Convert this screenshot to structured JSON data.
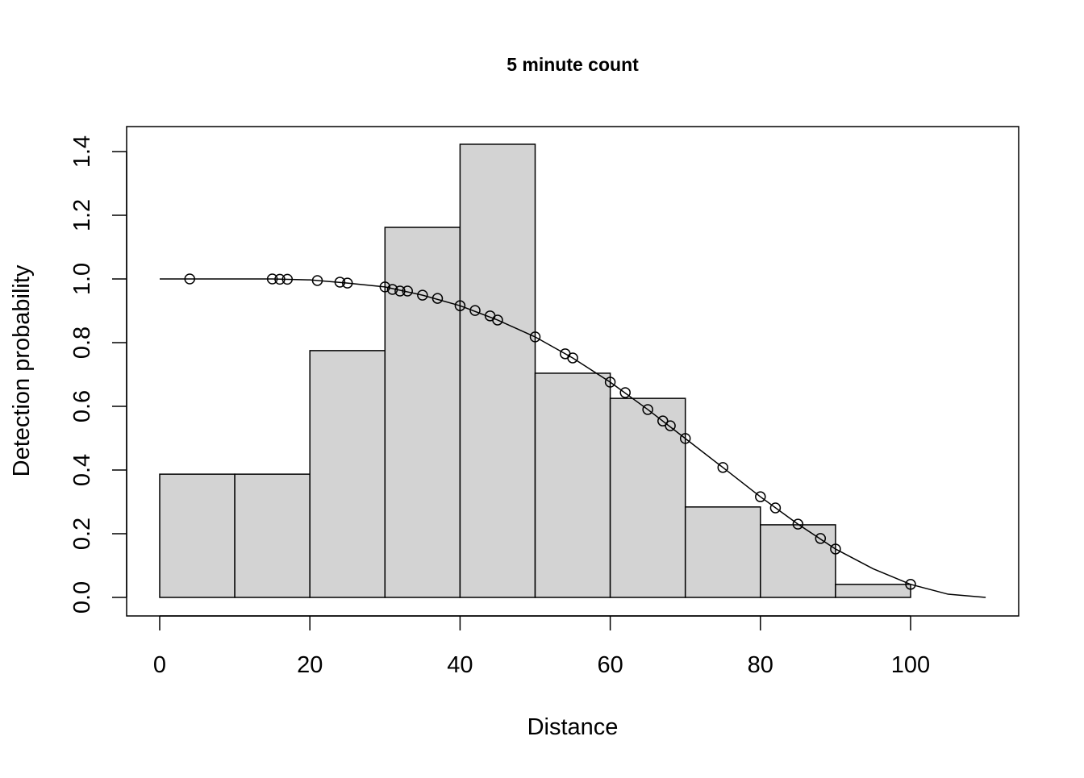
{
  "chart_data": {
    "type": "bar",
    "title": "5 minute count",
    "xlabel": "Distance",
    "ylabel": "Detection probability",
    "xlim": [
      0,
      110
    ],
    "ylim": [
      0,
      1.4
    ],
    "xticks": [
      "0",
      "20",
      "40",
      "60",
      "80",
      "100"
    ],
    "xtick_values": [
      0,
      20,
      40,
      60,
      80,
      100
    ],
    "yticks": [
      "0.0",
      "0.2",
      "0.4",
      "0.6",
      "0.8",
      "1.0",
      "1.2",
      "1.4"
    ],
    "ytick_values": [
      0,
      0.2,
      0.4,
      0.6,
      0.8,
      1.0,
      1.2,
      1.4
    ],
    "grid": false,
    "bar_color": "#d3d3d3",
    "histogram": {
      "bin_edges": [
        0,
        10,
        20,
        30,
        40,
        50,
        60,
        70,
        80,
        90,
        100
      ],
      "values": [
        0.387,
        0.387,
        0.775,
        1.162,
        1.423,
        0.704,
        0.625,
        0.284,
        0.228,
        0.041
      ]
    },
    "fitted_curve": {
      "x": [
        0,
        4,
        10,
        15,
        20,
        25,
        30,
        35,
        40,
        45,
        50,
        55,
        60,
        65,
        70,
        75,
        80,
        85,
        90,
        95,
        100,
        105,
        110
      ],
      "y": [
        1.0,
        1.0,
        1.0,
        1.0,
        0.997,
        0.987,
        0.975,
        0.949,
        0.916,
        0.871,
        0.818,
        0.752,
        0.676,
        0.59,
        0.499,
        0.408,
        0.316,
        0.23,
        0.152,
        0.09,
        0.041,
        0.01,
        0.0
      ]
    },
    "points": {
      "x": [
        4,
        15,
        16,
        17,
        21,
        24,
        25,
        30,
        31,
        32,
        33,
        35,
        37,
        40,
        42,
        44,
        45,
        50,
        54,
        55,
        60,
        62,
        65,
        67,
        68,
        70,
        75,
        80,
        82,
        85,
        88,
        90,
        100
      ],
      "y": [
        1.0,
        1.0,
        0.999,
        0.999,
        0.995,
        0.99,
        0.987,
        0.975,
        0.967,
        0.962,
        0.962,
        0.949,
        0.939,
        0.916,
        0.901,
        0.884,
        0.871,
        0.818,
        0.765,
        0.752,
        0.676,
        0.643,
        0.59,
        0.554,
        0.539,
        0.499,
        0.408,
        0.316,
        0.281,
        0.23,
        0.185,
        0.152,
        0.041
      ]
    }
  }
}
